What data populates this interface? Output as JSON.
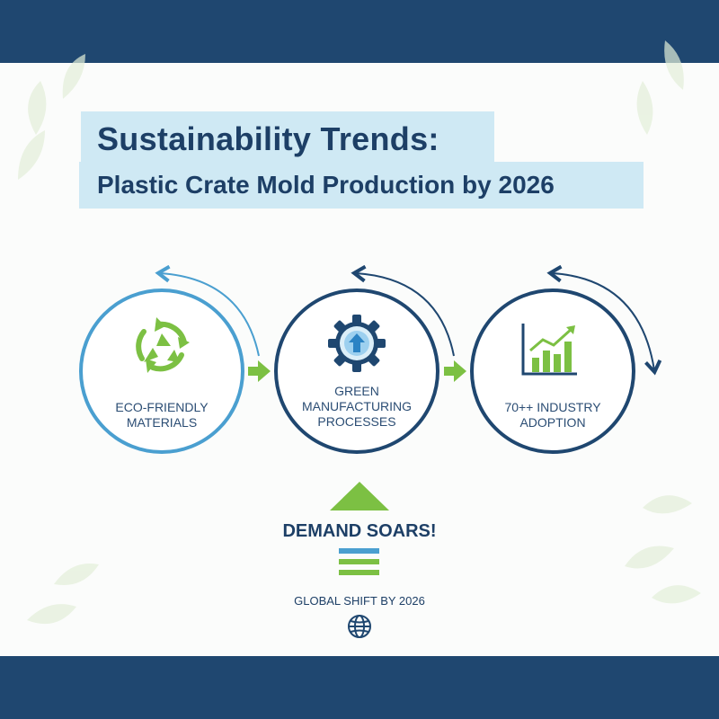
{
  "title": {
    "line1": "Sustainability Trends:",
    "line2": "Plastic Crate Mold Production by 2026"
  },
  "steps": [
    {
      "label": "ECO-FRIENDLY MATERIALS",
      "icon": "recycle-icon"
    },
    {
      "label": "GREEN MANUFACTURING PROCESSES",
      "icon": "gear-upload-icon"
    },
    {
      "label": "70++ INDUSTRY ADOPTION",
      "icon": "bar-chart-growth-icon"
    }
  ],
  "callout": {
    "headline": "DEMAND SOARS!",
    "footer": "GLOBAL SHIFT BY 2026",
    "footer_icon": "globe-icon"
  },
  "colors": {
    "navy": "#1f4770",
    "blue": "#4a9fd0",
    "green": "#7cc043",
    "title_bg": "#cfe9f4"
  }
}
